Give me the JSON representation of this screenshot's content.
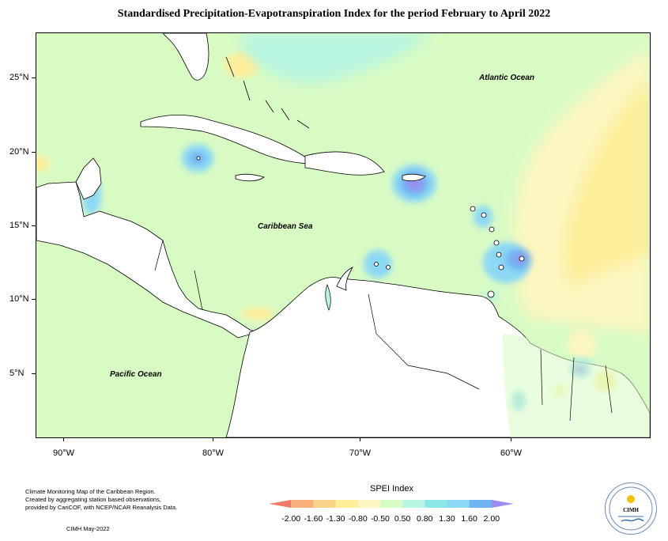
{
  "title": "Standardised Precipitation-Evapotranspiration Index for the period February to April 2022",
  "map": {
    "ocean_labels": {
      "atlantic": "Atlantic Ocean",
      "caribbean": "Caribbean Sea",
      "pacific": "Pacific Ocean"
    },
    "lat_labels": [
      "25°N",
      "20°N",
      "15°N",
      "10°N",
      "5°N"
    ],
    "lon_labels": [
      "90°W",
      "80°W",
      "70°W",
      "60°W"
    ],
    "colors": {
      "background": "#d8fbc4",
      "land": "#ffffff",
      "dry_yellow": "#fdee9a",
      "pale_yellow": "#fbf6bf",
      "light_teal": "#b8f5e0",
      "aqua": "#9cece8",
      "light_blue": "#8cd8f5",
      "blue": "#6fb3f0",
      "violet": "#9a8df0"
    }
  },
  "legend": {
    "title": "SPEI Index",
    "labels": [
      "-2.00",
      "-1.60",
      "-1.30",
      "-0.80",
      "-0.50",
      "0.50",
      "0.80",
      "1.30",
      "1.60",
      "2.00"
    ],
    "colors": [
      "#f27a6a",
      "#f8b17a",
      "#fbd28a",
      "#fdee9a",
      "#fbf6bf",
      "#d8fbc4",
      "#b8f5e0",
      "#8ce8e8",
      "#8cd8f5",
      "#6fb3f0",
      "#9a8df0"
    ]
  },
  "footnote": {
    "lines": [
      "Climate Monitoring Map of the Caribbean Region.",
      "Created by aggregating station based observations,",
      "provided by CariCOF, with NCEP/NCAR Reanalysis Data."
    ],
    "credit": "CIMH May-2022"
  },
  "logo": {
    "text": "CIMH"
  }
}
